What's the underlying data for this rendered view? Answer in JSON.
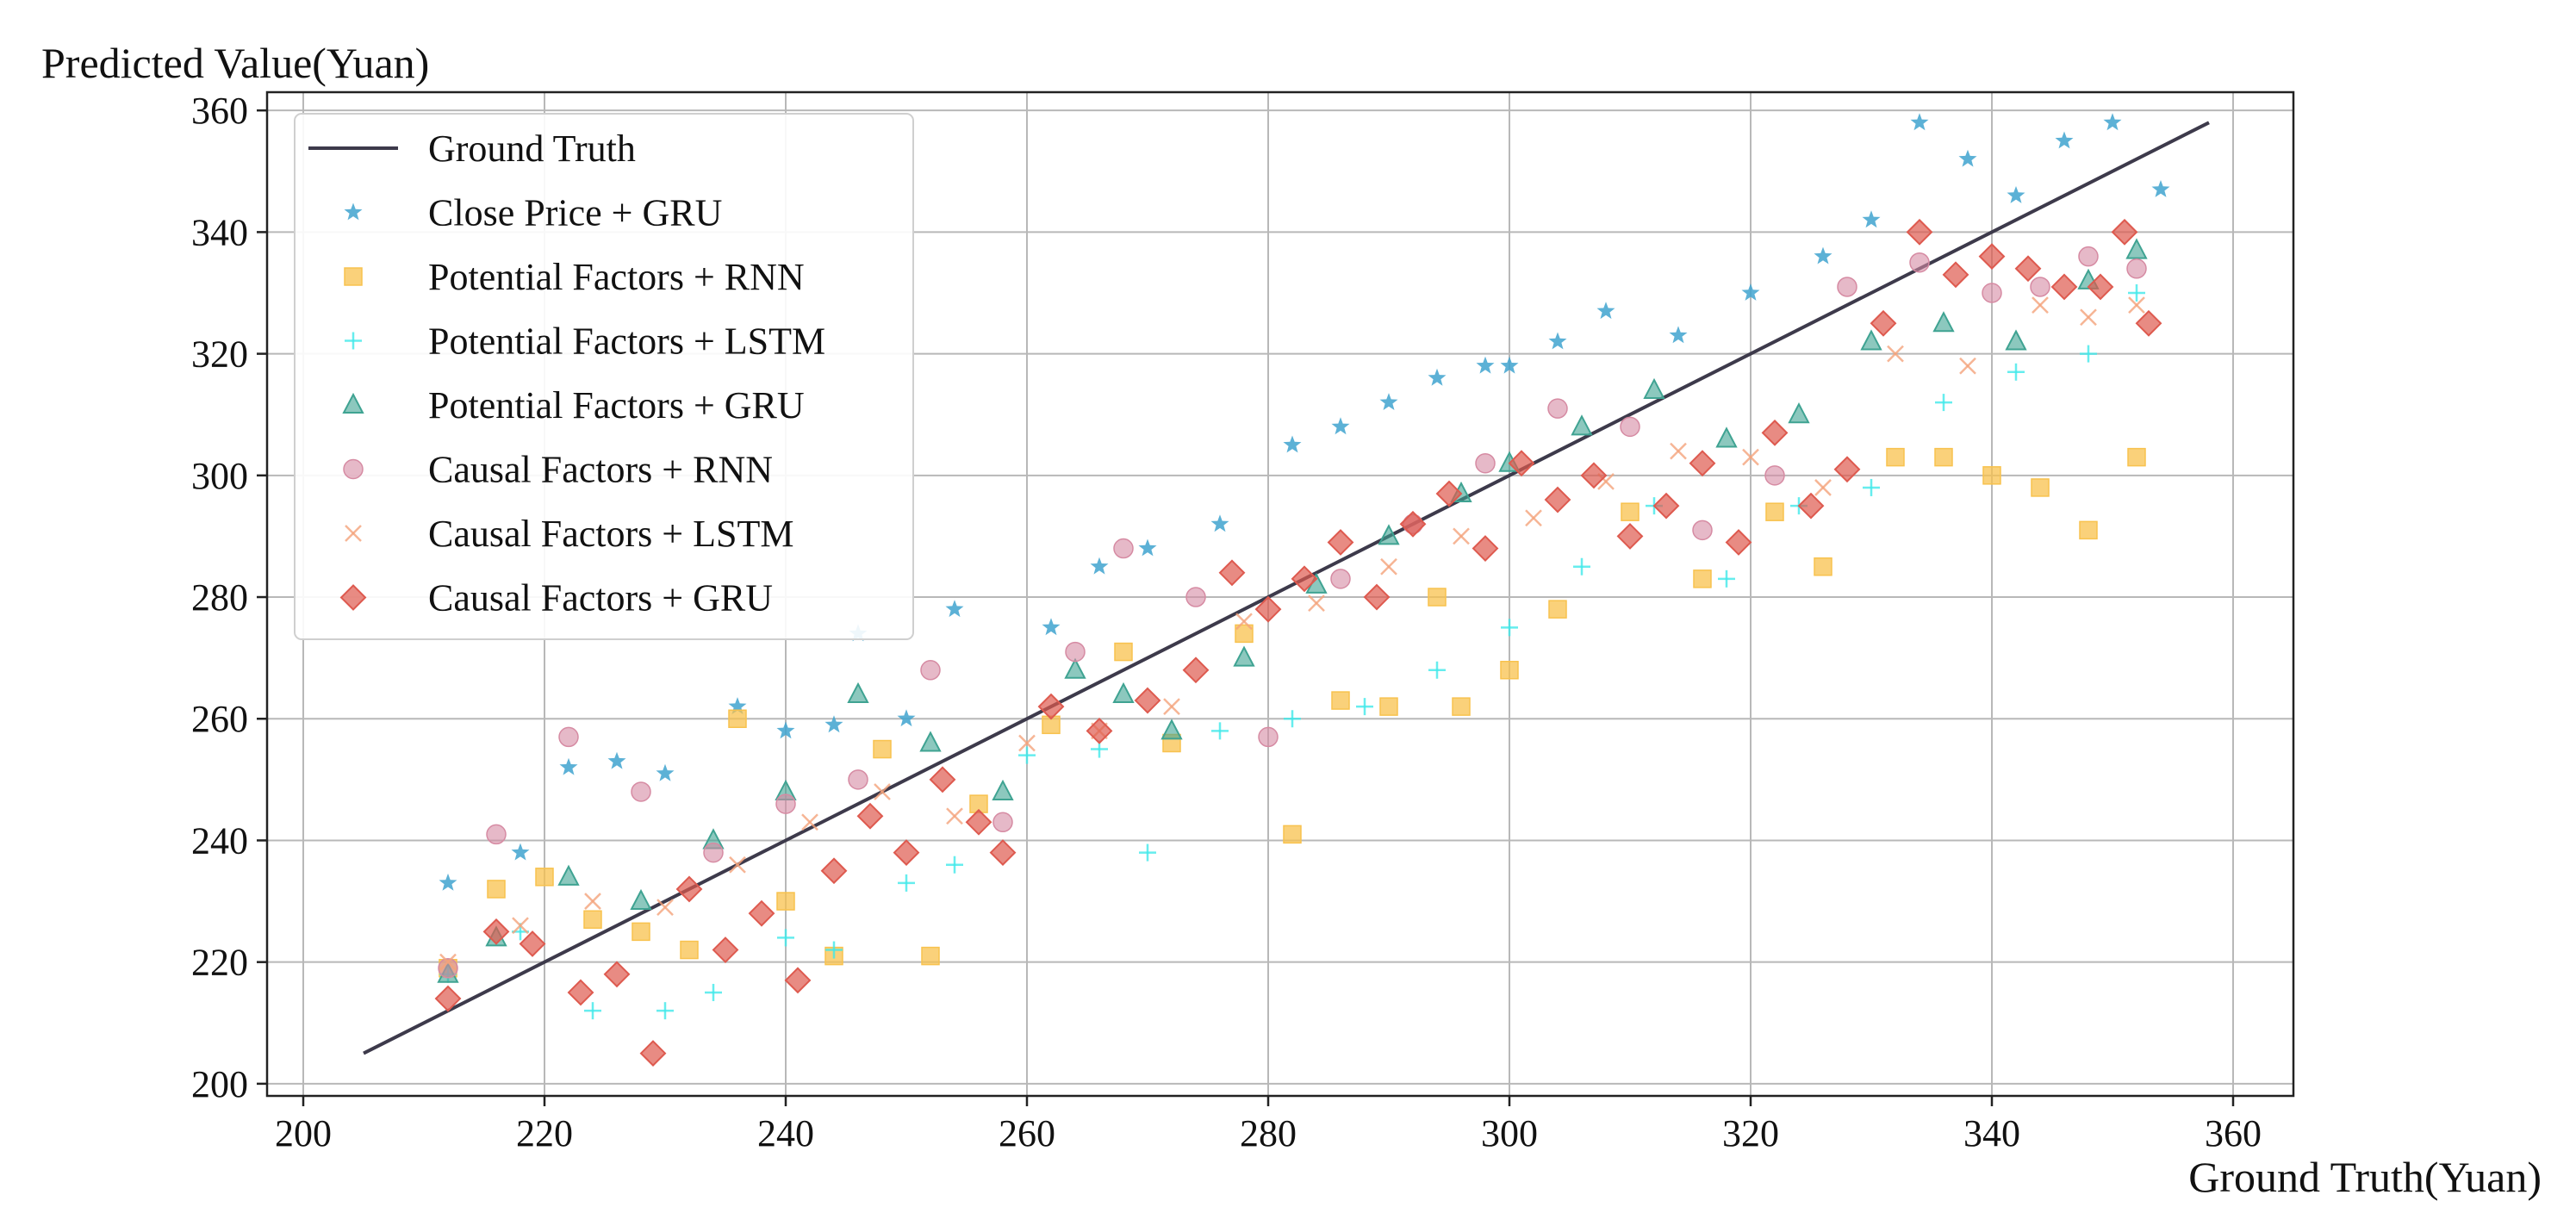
{
  "chart_data": {
    "type": "scatter",
    "title": "",
    "xlabel": "Ground Truth(Yuan)",
    "ylabel": "Predicted Value(Yuan)",
    "xlim": [
      197,
      365
    ],
    "ylim": [
      198,
      363
    ],
    "xticks": [
      200,
      220,
      240,
      260,
      280,
      300,
      320,
      340,
      360
    ],
    "yticks": [
      200,
      220,
      240,
      260,
      280,
      300,
      320,
      340,
      360
    ],
    "grid": true,
    "legend_position": "top-left",
    "reference_line": {
      "name": "Ground Truth",
      "x": [
        205,
        358
      ],
      "y": [
        205,
        358
      ],
      "color": "#3d3a4b"
    },
    "series": [
      {
        "name": "Close Price + GRU",
        "marker": "star",
        "color": "#3fa3cf",
        "x": [
          212,
          218,
          222,
          226,
          230,
          236,
          240,
          244,
          246,
          250,
          254,
          262,
          266,
          270,
          276,
          282,
          286,
          290,
          294,
          298,
          300,
          304,
          308,
          314,
          320,
          326,
          330,
          334,
          338,
          342,
          346,
          350,
          354
        ],
        "y": [
          233,
          238,
          252,
          253,
          251,
          262,
          258,
          259,
          274,
          260,
          278,
          275,
          285,
          288,
          292,
          305,
          308,
          312,
          316,
          318,
          318,
          322,
          327,
          323,
          330,
          336,
          342,
          358,
          352,
          346,
          355,
          358,
          347
        ]
      },
      {
        "name": "Potential Factors + RNN",
        "marker": "square",
        "color": "#f8c24e",
        "x": [
          212,
          216,
          220,
          224,
          228,
          232,
          236,
          240,
          244,
          248,
          252,
          256,
          262,
          268,
          272,
          278,
          282,
          286,
          290,
          294,
          296,
          300,
          304,
          310,
          316,
          322,
          326,
          332,
          336,
          340,
          344,
          348,
          352
        ],
        "y": [
          219,
          232,
          234,
          227,
          225,
          222,
          260,
          230,
          221,
          255,
          221,
          246,
          259,
          271,
          256,
          274,
          241,
          263,
          262,
          280,
          262,
          268,
          278,
          294,
          283,
          294,
          285,
          303,
          303,
          300,
          298,
          291,
          303
        ]
      },
      {
        "name": "Potential Factors + LSTM",
        "marker": "plus",
        "color": "#40e8ea",
        "x": [
          212,
          218,
          224,
          230,
          234,
          240,
          244,
          250,
          254,
          260,
          266,
          270,
          276,
          282,
          288,
          294,
          300,
          306,
          312,
          318,
          324,
          330,
          336,
          342,
          348,
          352
        ],
        "y": [
          218,
          225,
          212,
          212,
          215,
          224,
          222,
          233,
          236,
          254,
          255,
          238,
          258,
          260,
          262,
          268,
          275,
          285,
          295,
          283,
          295,
          298,
          312,
          317,
          320,
          330
        ]
      },
      {
        "name": "Potential Factors + GRU",
        "marker": "triangle",
        "color": "#3fa392",
        "x": [
          212,
          216,
          222,
          228,
          234,
          240,
          246,
          252,
          258,
          264,
          268,
          272,
          278,
          284,
          290,
          296,
          300,
          306,
          312,
          318,
          324,
          330,
          336,
          342,
          348,
          352
        ],
        "y": [
          218,
          224,
          234,
          230,
          240,
          248,
          264,
          256,
          248,
          268,
          264,
          258,
          270,
          282,
          290,
          297,
          302,
          308,
          314,
          306,
          310,
          322,
          325,
          322,
          332,
          337
        ]
      },
      {
        "name": "Causal Factors + RNN",
        "marker": "circle",
        "color": "#d68ba3",
        "x": [
          212,
          216,
          222,
          228,
          234,
          240,
          246,
          252,
          258,
          264,
          268,
          274,
          280,
          286,
          292,
          298,
          304,
          310,
          316,
          322,
          328,
          334,
          340,
          344,
          348,
          352
        ],
        "y": [
          219,
          241,
          257,
          248,
          238,
          246,
          250,
          268,
          243,
          271,
          288,
          280,
          257,
          283,
          292,
          302,
          311,
          308,
          291,
          300,
          331,
          335,
          330,
          331,
          336,
          334
        ]
      },
      {
        "name": "Causal Factors + LSTM",
        "marker": "x",
        "color": "#f4a37a",
        "x": [
          212,
          218,
          224,
          230,
          236,
          242,
          248,
          254,
          260,
          266,
          272,
          278,
          284,
          290,
          296,
          302,
          308,
          314,
          320,
          326,
          332,
          338,
          344,
          348,
          352
        ],
        "y": [
          220,
          226,
          230,
          229,
          236,
          243,
          248,
          244,
          256,
          258,
          262,
          276,
          279,
          285,
          290,
          293,
          299,
          304,
          303,
          298,
          320,
          318,
          328,
          326,
          328
        ]
      },
      {
        "name": "Causal Factors + GRU",
        "marker": "diamond",
        "color": "#de5a4f",
        "x": [
          212,
          216,
          219,
          223,
          226,
          229,
          232,
          235,
          238,
          241,
          244,
          247,
          250,
          253,
          256,
          258,
          262,
          266,
          270,
          274,
          277,
          280,
          283,
          286,
          289,
          292,
          295,
          298,
          301,
          304,
          307,
          310,
          313,
          316,
          319,
          322,
          325,
          328,
          331,
          334,
          337,
          340,
          343,
          346,
          349,
          351,
          353
        ],
        "y": [
          214,
          225,
          223,
          215,
          218,
          205,
          232,
          222,
          228,
          217,
          235,
          244,
          238,
          250,
          243,
          238,
          262,
          258,
          263,
          268,
          284,
          278,
          283,
          289,
          280,
          292,
          297,
          288,
          302,
          296,
          300,
          290,
          295,
          302,
          289,
          307,
          295,
          301,
          325,
          340,
          333,
          336,
          334,
          331,
          331,
          340,
          325
        ]
      }
    ]
  }
}
